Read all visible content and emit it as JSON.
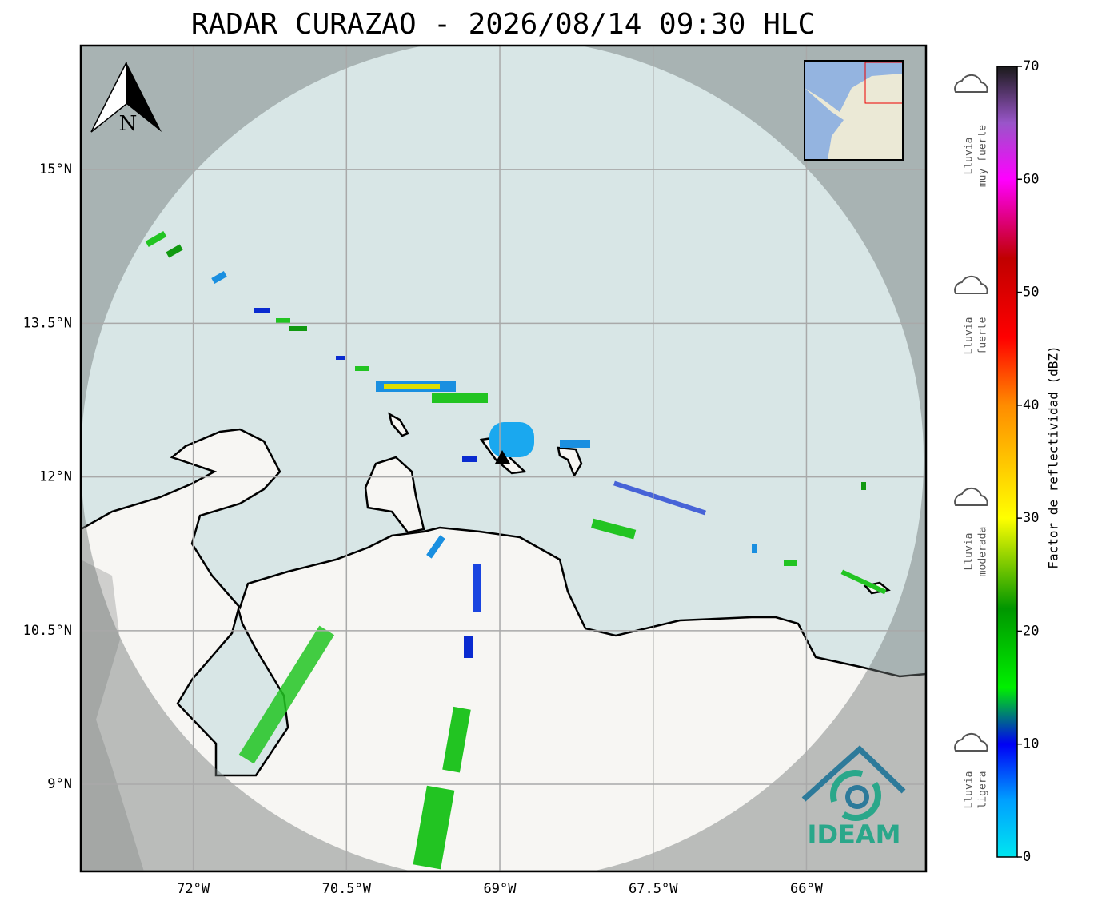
{
  "title": "RADAR CURAZAO - 2026/08/14 09:30 HLC",
  "map": {
    "lonlim": [
      -73.1,
      -64.83
    ],
    "latlim": [
      8.15,
      16.21
    ],
    "lon_ticks": [
      {
        "value": -72,
        "label": "72°W"
      },
      {
        "value": -70.5,
        "label": "70.5°W"
      },
      {
        "value": -69,
        "label": "69°W"
      },
      {
        "value": -67.5,
        "label": "67.5°W"
      },
      {
        "value": -66,
        "label": "66°W"
      }
    ],
    "lat_ticks": [
      {
        "value": 15,
        "label": "15°N"
      },
      {
        "value": 13.5,
        "label": "13.5°N"
      },
      {
        "value": 12,
        "label": "12°N"
      },
      {
        "value": 10.5,
        "label": "10.5°N"
      },
      {
        "value": 9,
        "label": "9°N"
      }
    ],
    "north_label": "N",
    "logo_text": "IDEAM"
  },
  "colorbar": {
    "label": "Factor de reflectividad (dBZ)",
    "lim": [
      0,
      70
    ],
    "ticks": [
      0,
      10,
      20,
      30,
      40,
      50,
      60,
      70
    ],
    "stops": [
      {
        "value": 0,
        "color": "#00e6f0"
      },
      {
        "value": 5,
        "color": "#00a0ff"
      },
      {
        "value": 10,
        "color": "#0000f5"
      },
      {
        "value": 15,
        "color": "#00f000"
      },
      {
        "value": 22,
        "color": "#009600"
      },
      {
        "value": 30,
        "color": "#ffff00"
      },
      {
        "value": 40,
        "color": "#ff8c00"
      },
      {
        "value": 46,
        "color": "#ff0000"
      },
      {
        "value": 53,
        "color": "#c00000"
      },
      {
        "value": 60,
        "color": "#ff00ff"
      },
      {
        "value": 65,
        "color": "#9955c9"
      },
      {
        "value": 70,
        "color": "#1a1a1a"
      }
    ]
  },
  "rain_levels": [
    {
      "lines": [
        "Lluvia",
        "muy fuerte"
      ]
    },
    {
      "lines": [
        "Lluvia",
        "fuerte"
      ]
    },
    {
      "lines": [
        "Lluvia",
        "moderada"
      ]
    },
    {
      "lines": [
        "Lluvia",
        "ligera"
      ]
    }
  ]
}
